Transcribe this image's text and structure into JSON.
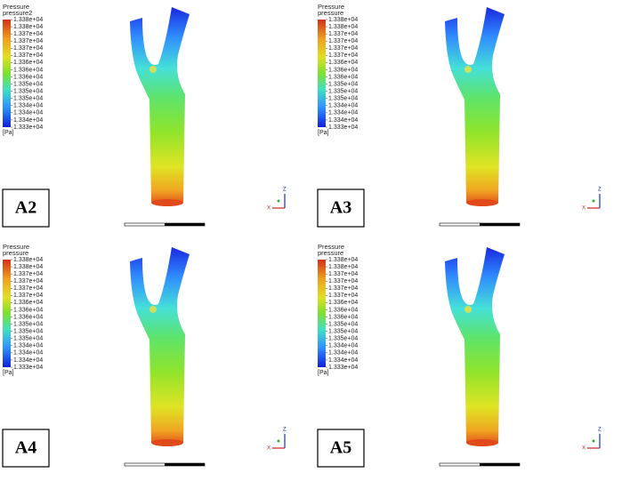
{
  "panels": [
    {
      "legend_title": "Pressure",
      "legend_subtitle": "pressure2",
      "levels": [
        "1.338e+04",
        "1.338e+04",
        "1.337e+04",
        "1.337e+04",
        "1.337e+04",
        "1.337e+04",
        "1.336e+04",
        "1.336e+04",
        "1.336e+04",
        "1.335e+04",
        "1.335e+04",
        "1.335e+04",
        "1.334e+04",
        "1.334e+04",
        "1.334e+04",
        "1.333e+04"
      ],
      "unit": "[Pa]",
      "label": "A2",
      "axis_z": "Z",
      "axis_x": "X"
    },
    {
      "legend_title": "Pressure",
      "legend_subtitle": "pressure",
      "levels": [
        "1.338e+04",
        "1.338e+04",
        "1.337e+04",
        "1.337e+04",
        "1.337e+04",
        "1.337e+04",
        "1.336e+04",
        "1.336e+04",
        "1.336e+04",
        "1.335e+04",
        "1.335e+04",
        "1.335e+04",
        "1.334e+04",
        "1.334e+04",
        "1.334e+04",
        "1.333e+04"
      ],
      "unit": "[Pa]",
      "label": "A3",
      "axis_z": "Z",
      "axis_x": "X"
    },
    {
      "legend_title": "Pressure",
      "legend_subtitle": "pressure",
      "levels": [
        "1.338e+04",
        "1.338e+04",
        "1.337e+04",
        "1.337e+04",
        "1.337e+04",
        "1.337e+04",
        "1.336e+04",
        "1.336e+04",
        "1.336e+04",
        "1.335e+04",
        "1.335e+04",
        "1.335e+04",
        "1.334e+04",
        "1.334e+04",
        "1.334e+04",
        "1.333e+04"
      ],
      "unit": "[Pa]",
      "label": "A4",
      "axis_z": "Z",
      "axis_x": "X"
    },
    {
      "legend_title": "Pressure",
      "legend_subtitle": "pressure",
      "levels": [
        "1.338e+04",
        "1.338e+04",
        "1.337e+04",
        "1.337e+04",
        "1.337e+04",
        "1.337e+04",
        "1.336e+04",
        "1.336e+04",
        "1.336e+04",
        "1.335e+04",
        "1.335e+04",
        "1.335e+04",
        "1.334e+04",
        "1.334e+04",
        "1.334e+04",
        "1.333e+04"
      ],
      "unit": "[Pa]",
      "label": "A5",
      "axis_z": "Z",
      "axis_x": "X"
    }
  ]
}
